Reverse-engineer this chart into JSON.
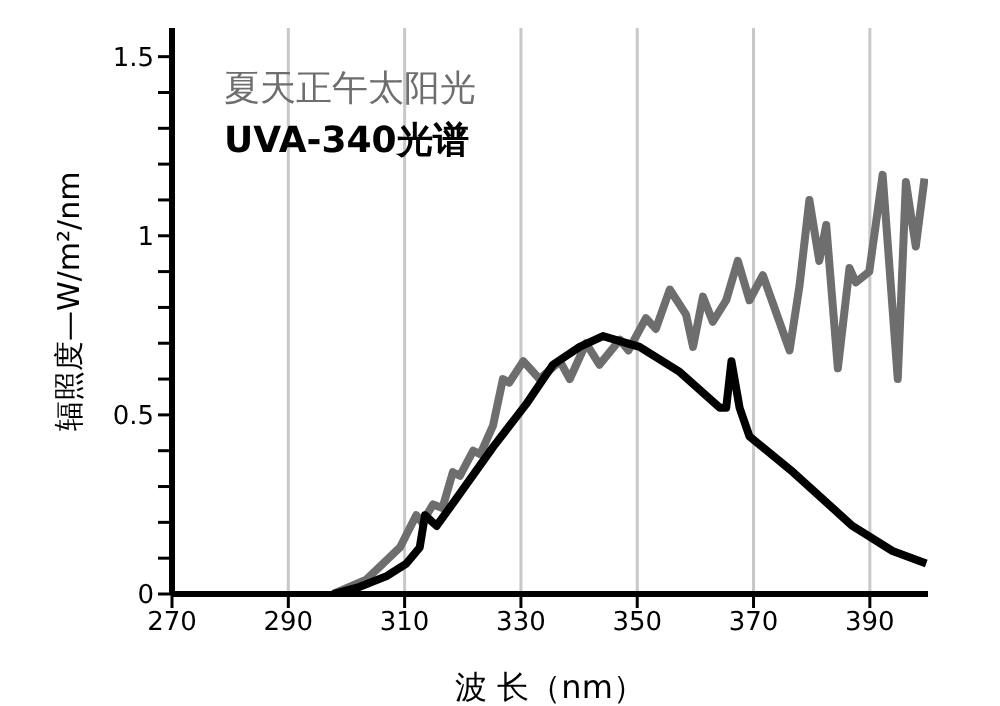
{
  "chart_data": {
    "type": "line",
    "xlabel": "波 长（nm）",
    "ylabel": "辐照度—W/m²/nm",
    "xlim": [
      270,
      400
    ],
    "xticks": [
      270,
      290,
      310,
      330,
      350,
      370,
      390
    ],
    "ylim": [
      0,
      1.58
    ],
    "yticks": [
      0,
      {
        "value": 0.1,
        "label": null
      },
      {
        "value": 0.2,
        "label": null
      },
      {
        "value": 0.3,
        "label": null
      },
      {
        "value": 0.4,
        "label": null
      },
      0.5,
      {
        "value": 0.6,
        "label": null
      },
      {
        "value": 0.7,
        "label": null
      },
      {
        "value": 0.8,
        "label": null
      },
      {
        "value": 0.9,
        "label": null
      },
      1,
      {
        "value": 1.1,
        "label": null
      },
      {
        "value": 1.2,
        "label": null
      },
      {
        "value": 1.3,
        "label": null
      },
      {
        "value": 1.4,
        "label": null
      },
      1.5
    ],
    "grid": "x",
    "legend": "top left",
    "marker": "none",
    "line_style": "solid",
    "series": [
      {
        "name": "夏天正午太阳光",
        "color": "#6e6e6e",
        "x": [
          297.7,
          303.4,
          309.2,
          312,
          313,
          314.9,
          316.5,
          318.3,
          319.5,
          321.8,
          323,
          325.2,
          326.9,
          328,
          330.4,
          333.2,
          336.7,
          338.4,
          341.2,
          343.5,
          347,
          348.5,
          351.5,
          353.2,
          355.6,
          358.4,
          359.6,
          361.3,
          363,
          365.3,
          367.3,
          369.3,
          371.6,
          376.2,
          377.9,
          379.6,
          381.3,
          382.5,
          384.5,
          386.5,
          387.6,
          389.9,
          392.2,
          394.8,
          396.2,
          397.9,
          399.4
        ],
        "values": [
          0,
          0.04,
          0.13,
          0.22,
          0.2,
          0.25,
          0.24,
          0.34,
          0.33,
          0.4,
          0.39,
          0.47,
          0.6,
          0.59,
          0.65,
          0.6,
          0.65,
          0.6,
          0.7,
          0.64,
          0.71,
          0.68,
          0.77,
          0.74,
          0.85,
          0.78,
          0.69,
          0.83,
          0.76,
          0.82,
          0.93,
          0.82,
          0.89,
          0.68,
          0.86,
          1.1,
          0.93,
          1.03,
          0.63,
          0.91,
          0.87,
          0.9,
          1.17,
          0.6,
          1.15,
          0.97,
          1.16
        ]
      },
      {
        "name": "UVA-340光谱",
        "color": "#000000",
        "x": [
          297.7,
          302.3,
          306.9,
          310.3,
          312.6,
          313.5,
          315.5,
          319.5,
          325.2,
          330.9,
          335.5,
          340.1,
          344.1,
          350.4,
          357.3,
          364.2,
          365.3,
          366.2,
          367.6,
          369.3,
          376.8,
          387,
          393.9,
          399.7
        ],
        "values": [
          0,
          0.02,
          0.05,
          0.085,
          0.13,
          0.22,
          0.19,
          0.28,
          0.41,
          0.53,
          0.64,
          0.69,
          0.72,
          0.69,
          0.62,
          0.52,
          0.52,
          0.65,
          0.52,
          0.44,
          0.34,
          0.19,
          0.12,
          0.085
        ]
      }
    ]
  }
}
